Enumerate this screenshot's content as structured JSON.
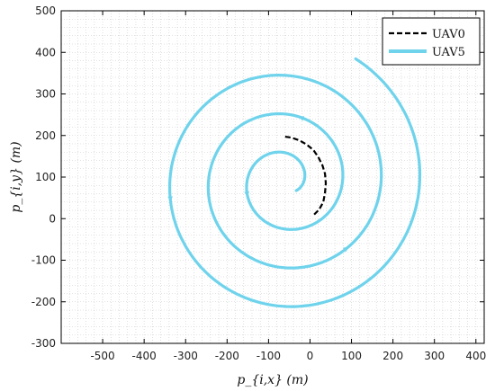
{
  "chart_data": {
    "type": "line",
    "title": "",
    "xlabel": "p_{i,x} (m)",
    "ylabel": "p_{i,y} (m)",
    "xlim": [
      -600,
      420
    ],
    "ylim": [
      -300,
      500
    ],
    "xticks": [
      -500,
      -400,
      -300,
      -200,
      -100,
      0,
      100,
      200,
      300,
      400
    ],
    "yticks": [
      -300,
      -200,
      -100,
      0,
      100,
      200,
      300,
      400,
      500
    ],
    "grid": "dotted",
    "legend_position": "top-right",
    "series": [
      {
        "name": "UAV0",
        "style": "dashed",
        "color": "#000000",
        "points": [
          [
            10,
            10
          ],
          [
            22,
            22
          ],
          [
            32,
            40
          ],
          [
            36,
            62
          ],
          [
            38,
            85
          ],
          [
            36,
            108
          ],
          [
            30,
            128
          ],
          [
            20,
            148
          ],
          [
            8,
            165
          ],
          [
            -8,
            178
          ],
          [
            -25,
            188
          ],
          [
            -45,
            195
          ],
          [
            -65,
            198
          ]
        ]
      },
      {
        "name": "UAV5",
        "style": "solid",
        "color": "#6fd3ec",
        "spiral": {
          "center": [
            -60,
            90
          ],
          "r_start": 35,
          "r_end": 340,
          "theta_start_deg": -40,
          "theta_end_deg": 1140
        }
      }
    ]
  },
  "legend": {
    "items": [
      {
        "label": "UAV0"
      },
      {
        "label": "UAV5"
      }
    ]
  }
}
